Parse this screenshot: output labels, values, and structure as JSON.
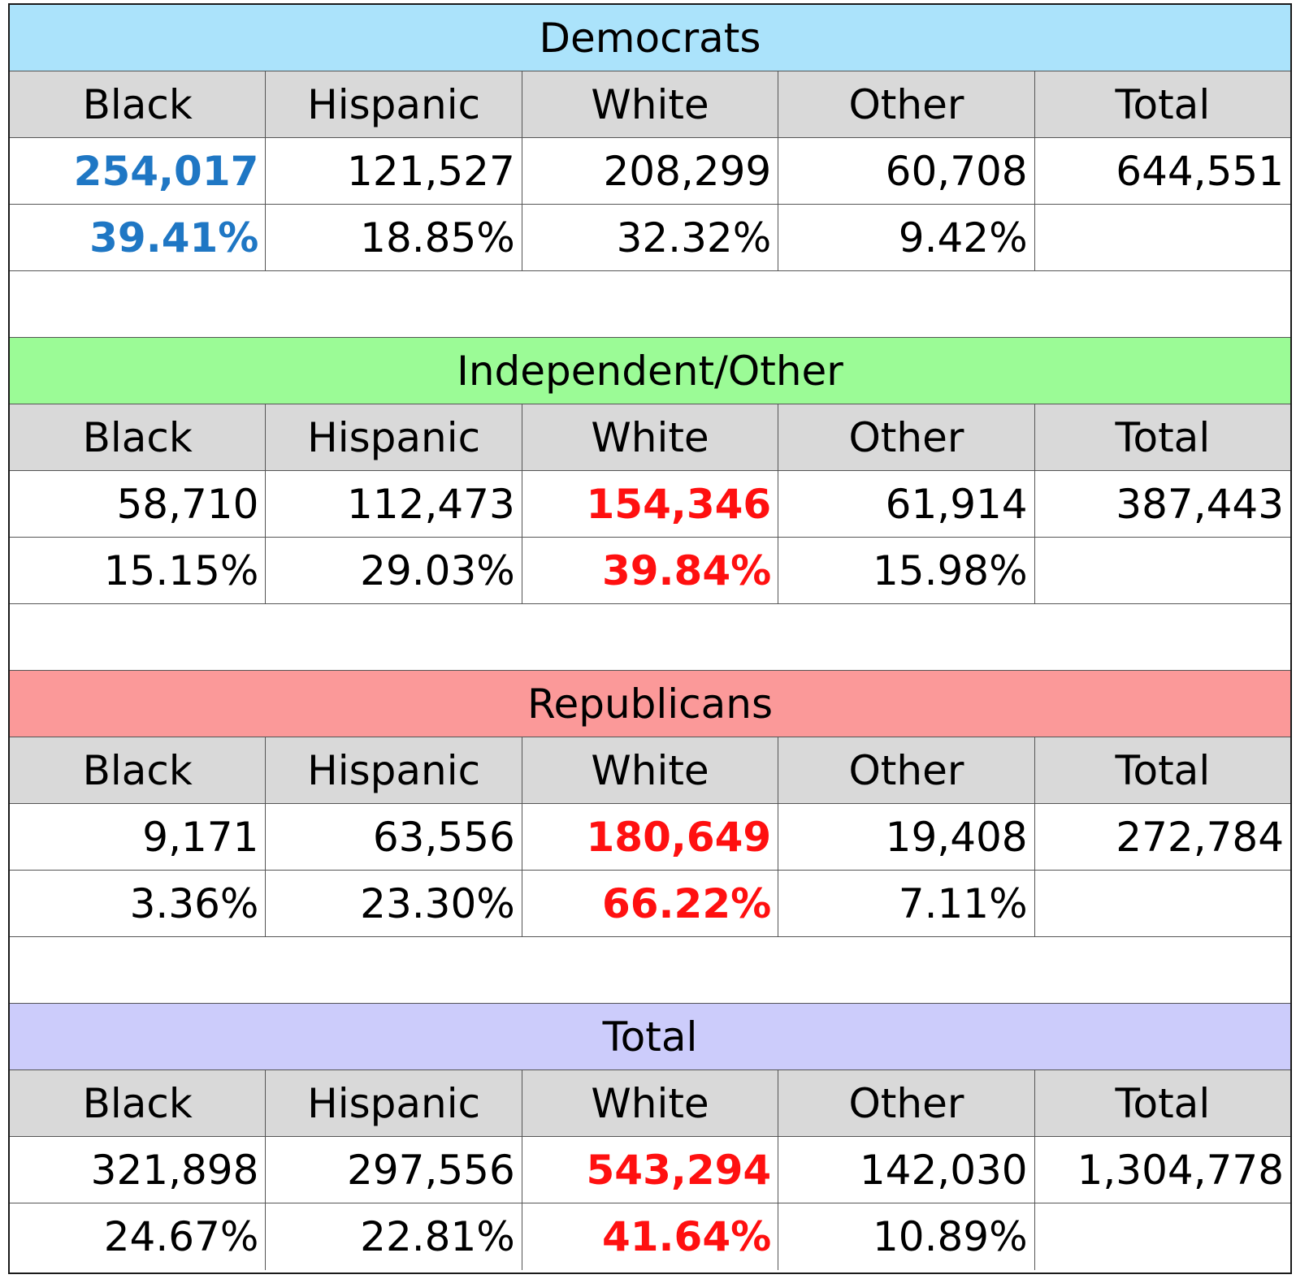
{
  "chart_data": {
    "type": "table",
    "columns": [
      "Black",
      "Hispanic",
      "White",
      "Other",
      "Total"
    ],
    "groups": [
      {
        "title": "Democrats",
        "title_color": "#abe3fb",
        "counts": [
          "254,017",
          "121,527",
          "208,299",
          "60,708",
          "644,551"
        ],
        "percents": [
          "39.41%",
          "18.85%",
          "32.32%",
          "9.42%",
          ""
        ],
        "highlight_column": 0,
        "highlight_color": "#1f77c4"
      },
      {
        "title": "Independent/Other",
        "title_color": "#9bfb96",
        "counts": [
          "58,710",
          "112,473",
          "154,346",
          "61,914",
          "387,443"
        ],
        "percents": [
          "15.15%",
          "29.03%",
          "39.84%",
          "15.98%",
          ""
        ],
        "highlight_column": 2,
        "highlight_color": "#ff1010"
      },
      {
        "title": "Republicans",
        "title_color": "#fb9999",
        "counts": [
          "9,171",
          "63,556",
          "180,649",
          "19,408",
          "272,784"
        ],
        "percents": [
          "3.36%",
          "23.30%",
          "66.22%",
          "7.11%",
          ""
        ],
        "highlight_column": 2,
        "highlight_color": "#ff1010"
      },
      {
        "title": "Total",
        "title_color": "#ccccfb",
        "counts": [
          "321,898",
          "297,556",
          "543,294",
          "142,030",
          "1,304,778"
        ],
        "percents": [
          "24.67%",
          "22.81%",
          "41.64%",
          "10.89%",
          ""
        ],
        "highlight_column": 2,
        "highlight_color": "#ff1010"
      }
    ],
    "header_color": "#d9d9d9"
  }
}
